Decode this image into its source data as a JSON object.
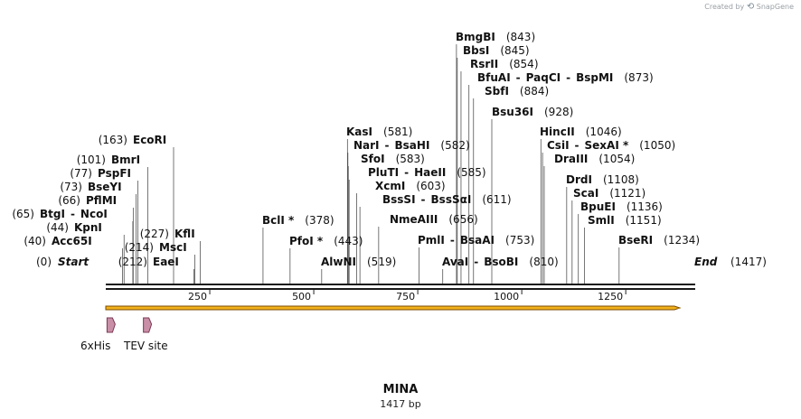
{
  "map": {
    "name": "MINA",
    "length_label": "1417 bp",
    "length": 1417,
    "start_label": "Start",
    "start_pos": 0,
    "end_label": "End",
    "end_pos": 1417
  },
  "brand": {
    "prefix": "Created by",
    "name": "SnapGene"
  },
  "colors": {
    "backbone": "#1a1a1a",
    "orf_fill": "#f3b21a",
    "orf_stroke": "#7a4a00",
    "feature_fill": "#c98fa6",
    "feature_stroke": "#7a3a55",
    "tick": "#222222"
  },
  "axis_ticks": [
    250,
    500,
    750,
    1000,
    1250
  ],
  "features": [
    {
      "label": "6xHis",
      "start": 3,
      "end": 20
    },
    {
      "label": "TEV site",
      "start": 47,
      "end": 66
    }
  ],
  "orf": {
    "start": 0,
    "end": 1380
  },
  "sites": [
    {
      "name": "Acc65I",
      "pos": 40,
      "pos_label": "(40)",
      "side": "left"
    },
    {
      "name": "KpnI",
      "pos": 44,
      "pos_label": "(44)",
      "side": "left"
    },
    {
      "name": "BtgI",
      "name2": "NcoI",
      "pos": 65,
      "pos_label": "(65)",
      "side": "left"
    },
    {
      "name": "PflMI",
      "pos": 66,
      "pos_label": "(66)",
      "side": "left"
    },
    {
      "name": "BseYI",
      "pos": 73,
      "pos_label": "(73)",
      "side": "left"
    },
    {
      "name": "PspFI",
      "pos": 77,
      "pos_label": "(77)",
      "side": "left"
    },
    {
      "name": "BmrI",
      "pos": 101,
      "pos_label": "(101)",
      "side": "left"
    },
    {
      "name": "EcoRI",
      "pos": 163,
      "pos_label": "(163)",
      "side": "left"
    },
    {
      "name": "EaeI",
      "pos": 212,
      "pos_label": "(212)",
      "side": "left"
    },
    {
      "name": "MscI",
      "pos": 214,
      "pos_label": "(214)",
      "side": "left"
    },
    {
      "name": "KflI",
      "pos": 227,
      "pos_label": "(227)",
      "side": "left"
    },
    {
      "name": "BclI *",
      "pos": 378,
      "pos_label": "(378)",
      "side": "right"
    },
    {
      "name": "PfoI *",
      "pos": 443,
      "pos_label": "(443)",
      "side": "right"
    },
    {
      "name": "AlwNI",
      "pos": 519,
      "pos_label": "(519)",
      "side": "right"
    },
    {
      "name": "KasI",
      "pos": 581,
      "pos_label": "(581)",
      "side": "right"
    },
    {
      "name": "NarI",
      "name2": "BsaHI",
      "pos": 582,
      "pos_label": "(582)",
      "side": "right"
    },
    {
      "name": "SfoI",
      "pos": 583,
      "pos_label": "(583)",
      "side": "right"
    },
    {
      "name": "PluTI",
      "name2": "HaeII",
      "pos": 585,
      "pos_label": "(585)",
      "side": "right"
    },
    {
      "name": "XcmI",
      "pos": 603,
      "pos_label": "(603)",
      "side": "right"
    },
    {
      "name": "BssSI",
      "name2": "BssSαI",
      "pos": 611,
      "pos_label": "(611)",
      "side": "right"
    },
    {
      "name": "NmeAIII",
      "pos": 656,
      "pos_label": "(656)",
      "side": "right"
    },
    {
      "name": "PmlI",
      "name2": "BsaAI",
      "pos": 753,
      "pos_label": "(753)",
      "side": "right"
    },
    {
      "name": "AvaI",
      "name2": "BsoBI",
      "pos": 810,
      "pos_label": "(810)",
      "side": "right"
    },
    {
      "name": "BmgBI",
      "pos": 843,
      "pos_label": "(843)",
      "side": "right"
    },
    {
      "name": "BbsI",
      "pos": 845,
      "pos_label": "(845)",
      "side": "right"
    },
    {
      "name": "RsrII",
      "pos": 854,
      "pos_label": "(854)",
      "side": "right"
    },
    {
      "name": "BfuAI",
      "name2": "PaqCI",
      "name3": "BspMI",
      "pos": 873,
      "pos_label": "(873)",
      "side": "right"
    },
    {
      "name": "SbfI",
      "pos": 884,
      "pos_label": "(884)",
      "side": "right"
    },
    {
      "name": "Bsu36I",
      "pos": 928,
      "pos_label": "(928)",
      "side": "right"
    },
    {
      "name": "HincII",
      "pos": 1046,
      "pos_label": "(1046)",
      "side": "right"
    },
    {
      "name": "CsiI",
      "name2": "SexAI *",
      "pos": 1050,
      "pos_label": "(1050)",
      "side": "right"
    },
    {
      "name": "DraIII",
      "pos": 1054,
      "pos_label": "(1054)",
      "side": "right"
    },
    {
      "name": "DrdI",
      "pos": 1108,
      "pos_label": "(1108)",
      "side": "right"
    },
    {
      "name": "ScaI",
      "pos": 1121,
      "pos_label": "(1121)",
      "side": "right"
    },
    {
      "name": "BpuEI",
      "pos": 1136,
      "pos_label": "(1136)",
      "side": "right"
    },
    {
      "name": "SmlI",
      "pos": 1151,
      "pos_label": "(1151)",
      "side": "right"
    },
    {
      "name": "BseRI",
      "pos": 1234,
      "pos_label": "(1234)",
      "side": "right"
    }
  ]
}
